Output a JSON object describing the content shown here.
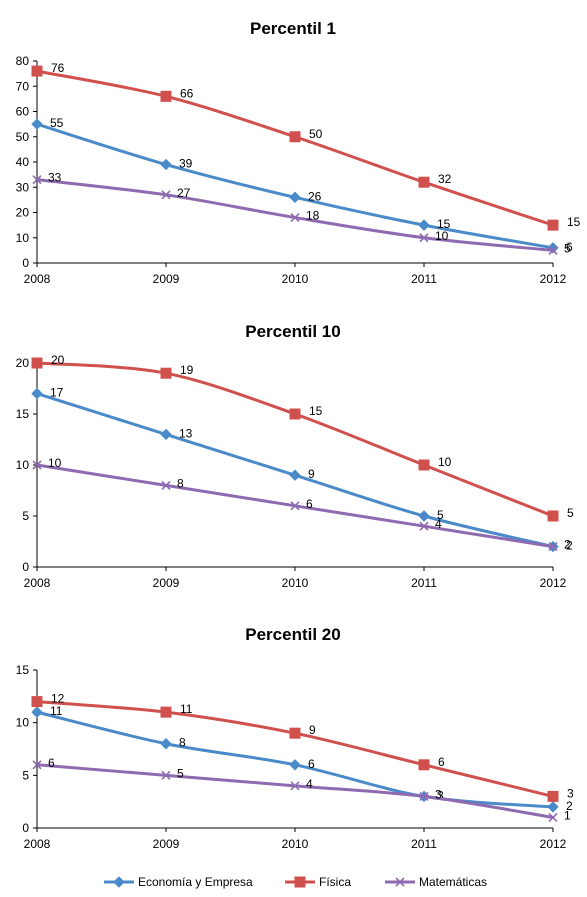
{
  "chart_data": [
    {
      "type": "line",
      "title": "Percentil 1",
      "categories": [
        "2008",
        "2009",
        "2010",
        "2011",
        "2012"
      ],
      "ylim": [
        0,
        80
      ],
      "yticks": [
        0,
        10,
        20,
        30,
        40,
        50,
        60,
        70,
        80
      ],
      "grid": false,
      "series": [
        {
          "name": "Economía y Empresa",
          "color": "#4a8ac9",
          "marker": "diamond",
          "values": [
            55,
            39,
            26,
            15,
            6
          ]
        },
        {
          "name": "Física",
          "color": "#d0504d",
          "marker": "square",
          "values": [
            76,
            66,
            50,
            32,
            15
          ]
        },
        {
          "name": "Matemáticas",
          "color": "#8e6bb0",
          "marker": "x",
          "values": [
            33,
            27,
            18,
            10,
            5
          ]
        }
      ]
    },
    {
      "type": "line",
      "title": "Percentil 10",
      "categories": [
        "2008",
        "2009",
        "2010",
        "2011",
        "2012"
      ],
      "ylim": [
        0,
        20
      ],
      "yticks": [
        0,
        5,
        10,
        15,
        20
      ],
      "grid": false,
      "series": [
        {
          "name": "Economía y Empresa",
          "color": "#4a8ac9",
          "marker": "diamond",
          "values": [
            17,
            13,
            9,
            5,
            2
          ]
        },
        {
          "name": "Física",
          "color": "#d0504d",
          "marker": "square",
          "values": [
            20,
            19,
            15,
            10,
            5
          ]
        },
        {
          "name": "Matemáticas",
          "color": "#8e6bb0",
          "marker": "x",
          "values": [
            10,
            8,
            6,
            4,
            2
          ]
        }
      ]
    },
    {
      "type": "line",
      "title": "Percentil 20",
      "categories": [
        "2008",
        "2009",
        "2010",
        "2011",
        "2012"
      ],
      "ylim": [
        0,
        15
      ],
      "yticks": [
        0,
        5,
        10,
        15
      ],
      "grid": false,
      "series": [
        {
          "name": "Economía y Empresa",
          "color": "#4a8ac9",
          "marker": "diamond",
          "values": [
            11,
            8,
            6,
            3,
            2
          ]
        },
        {
          "name": "Física",
          "color": "#d0504d",
          "marker": "square",
          "values": [
            12,
            11,
            9,
            6,
            3
          ]
        },
        {
          "name": "Matemáticas",
          "color": "#8e6bb0",
          "marker": "x",
          "values": [
            6,
            5,
            4,
            3,
            1
          ]
        }
      ]
    }
  ],
  "legend": {
    "placement": "bottom",
    "items": [
      {
        "label": "Economía y Empresa",
        "color": "#4a8ac9",
        "marker": "diamond"
      },
      {
        "label": "Física",
        "color": "#d0504d",
        "marker": "square"
      },
      {
        "label": "Matemáticas",
        "color": "#8e6bb0",
        "marker": "x"
      }
    ]
  }
}
